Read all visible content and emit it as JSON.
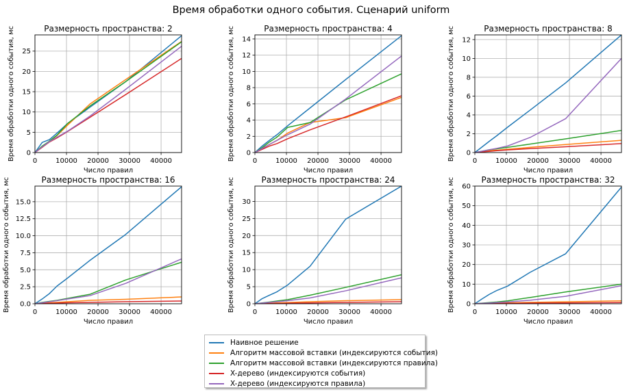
{
  "suptitle": "Время обработки одного события. Сценарий uniform",
  "chart_data": [
    {
      "type": "line",
      "title": "Размерность пространства: 2",
      "xlabel": "Число правил",
      "ylabel": "Время обработки одного события, мс",
      "xlim": [
        0,
        46500
      ],
      "ylim": [
        0,
        29
      ],
      "xticks": [
        0,
        10000,
        20000,
        30000,
        40000
      ],
      "yticks": [
        0,
        5,
        10,
        15,
        20,
        25
      ],
      "grid": true,
      "series": [
        {
          "name": "Наивное решение",
          "color": "#1f77b4",
          "x": [
            0,
            2300,
            4600,
            7000,
            10400,
            17500,
            28800,
            46500
          ],
          "y": [
            0,
            2.5,
            3.2,
            4.8,
            7.2,
            11.2,
            17.5,
            28.8
          ]
        },
        {
          "name": "Алгоритм массовой вставки (индексируются события)",
          "color": "#ff7f0e",
          "x": [
            0,
            2300,
            4600,
            7000,
            10400,
            17500,
            28800,
            46500
          ],
          "y": [
            0,
            1.3,
            2.8,
            4.2,
            6.8,
            12.0,
            18.0,
            27.4
          ]
        },
        {
          "name": "Алгоритм массовой вставки (индексируются правила)",
          "color": "#2ca02c",
          "x": [
            0,
            2300,
            4600,
            7000,
            10400,
            17500,
            28800,
            46500
          ],
          "y": [
            0,
            1.6,
            2.8,
            4.3,
            7.2,
            11.5,
            17.5,
            27.3
          ]
        },
        {
          "name": "X-дерево (индексируются события)",
          "color": "#d62728",
          "x": [
            0,
            2300,
            4600,
            7000,
            10400,
            17500,
            28800,
            46500
          ],
          "y": [
            0,
            1.3,
            2.6,
            3.6,
            5.2,
            8.7,
            14.3,
            23.2
          ]
        },
        {
          "name": "X-дерево (индексируются правила)",
          "color": "#9467bd",
          "x": [
            0,
            2300,
            4600,
            7000,
            10400,
            17500,
            28800,
            46500
          ],
          "y": [
            0,
            1.4,
            2.7,
            3.8,
            5.3,
            9.0,
            15.6,
            26.2
          ]
        }
      ]
    },
    {
      "type": "line",
      "title": "Размерность пространства: 4",
      "xlabel": "Число правил",
      "ylabel": "Время обработки одного события, мс",
      "xlim": [
        0,
        46500
      ],
      "ylim": [
        0,
        14.5
      ],
      "xticks": [
        0,
        10000,
        20000,
        30000,
        40000
      ],
      "yticks": [
        0,
        2,
        4,
        6,
        8,
        10,
        12,
        14
      ],
      "grid": true,
      "series": [
        {
          "name": "Наивное решение",
          "color": "#1f77b4",
          "x": [
            0,
            2300,
            4600,
            7000,
            10400,
            17500,
            28800,
            46500
          ],
          "y": [
            0,
            0.8,
            1.5,
            2.2,
            3.3,
            5.5,
            9.0,
            14.4
          ]
        },
        {
          "name": "Алгоритм массовой вставки (индексируются события)",
          "color": "#ff7f0e",
          "x": [
            0,
            2300,
            4600,
            7000,
            10400,
            17500,
            28800,
            46500
          ],
          "y": [
            0,
            0.5,
            1.0,
            1.5,
            2.4,
            3.7,
            4.3,
            6.8
          ]
        },
        {
          "name": "Алгоритм массовой вставки (индексируются правила)",
          "color": "#2ca02c",
          "x": [
            0,
            2300,
            4600,
            7000,
            10400,
            17500,
            28800,
            46500
          ],
          "y": [
            0,
            0.6,
            1.3,
            1.9,
            3.1,
            3.7,
            6.5,
            9.7
          ]
        },
        {
          "name": "X-дерево (индексируются события)",
          "color": "#d62728",
          "x": [
            0,
            2300,
            4600,
            7000,
            10400,
            17500,
            28800,
            46500
          ],
          "y": [
            0,
            0.4,
            0.8,
            1.1,
            1.7,
            2.8,
            4.4,
            7.0
          ]
        },
        {
          "name": "X-дерево (индексируются правила)",
          "color": "#9467bd",
          "x": [
            0,
            2300,
            4600,
            7000,
            10400,
            17500,
            28800,
            46500
          ],
          "y": [
            0,
            0.5,
            1.0,
            1.5,
            2.2,
            3.5,
            6.6,
            11.9
          ]
        }
      ]
    },
    {
      "type": "line",
      "title": "Размерность пространства: 8",
      "xlabel": "Число правил",
      "ylabel": "Время обработки одного события, мс",
      "xlim": [
        0,
        46500
      ],
      "ylim": [
        0,
        12.5
      ],
      "xticks": [
        0,
        10000,
        20000,
        30000,
        40000
      ],
      "yticks": [
        0,
        2,
        4,
        6,
        8,
        10,
        12
      ],
      "grid": true,
      "series": [
        {
          "name": "Наивное решение",
          "color": "#1f77b4",
          "x": [
            0,
            2300,
            4600,
            7000,
            10400,
            17500,
            28800,
            46500
          ],
          "y": [
            0,
            0.6,
            1.2,
            1.8,
            2.7,
            4.5,
            7.4,
            12.5
          ]
        },
        {
          "name": "Алгоритм массовой вставки (индексируются события)",
          "color": "#ff7f0e",
          "x": [
            0,
            2300,
            4600,
            7000,
            10400,
            17500,
            28800,
            46500
          ],
          "y": [
            0,
            0.1,
            0.2,
            0.25,
            0.35,
            0.55,
            0.85,
            1.3
          ]
        },
        {
          "name": "Алгоритм массовой вставки (индексируются правила)",
          "color": "#2ca02c",
          "x": [
            0,
            2300,
            4600,
            7000,
            10400,
            17500,
            28800,
            46500
          ],
          "y": [
            0,
            0.15,
            0.3,
            0.4,
            0.55,
            0.9,
            1.45,
            2.35
          ]
        },
        {
          "name": "X-дерево (индексируются события)",
          "color": "#d62728",
          "x": [
            0,
            2300,
            4600,
            7000,
            10400,
            17500,
            28800,
            46500
          ],
          "y": [
            0,
            0.07,
            0.13,
            0.2,
            0.28,
            0.42,
            0.62,
            0.95
          ]
        },
        {
          "name": "X-дерево (индексируются правила)",
          "color": "#9467bd",
          "x": [
            0,
            2300,
            4600,
            7000,
            10400,
            17500,
            28800,
            46500
          ],
          "y": [
            0,
            0.15,
            0.3,
            0.45,
            0.7,
            1.6,
            3.6,
            10.0
          ]
        }
      ]
    },
    {
      "type": "line",
      "title": "Размерность пространства: 16",
      "xlabel": "Число правил",
      "ylabel": "Время обработки одного события, мс",
      "xlim": [
        0,
        46500
      ],
      "ylim": [
        0,
        17.3
      ],
      "xticks": [
        0,
        10000,
        20000,
        30000,
        40000
      ],
      "yticks": [
        0,
        2.5,
        5.0,
        7.5,
        10.0,
        12.5,
        15.0
      ],
      "ytick_labels": [
        "0.0",
        "2.5",
        "5.0",
        "7.5",
        "10.0",
        "12.5",
        "15.0"
      ],
      "grid": true,
      "series": [
        {
          "name": "Наивное решение",
          "color": "#1f77b4",
          "x": [
            0,
            2300,
            4600,
            7000,
            10400,
            17500,
            28800,
            46500
          ],
          "y": [
            0,
            0.7,
            1.5,
            2.6,
            3.8,
            6.4,
            10.2,
            17.2
          ]
        },
        {
          "name": "Алгоритм массовой вставки (индексируются события)",
          "color": "#ff7f0e",
          "x": [
            0,
            2300,
            4600,
            7000,
            10400,
            17500,
            28800,
            46500
          ],
          "y": [
            0,
            0.1,
            0.15,
            0.2,
            0.3,
            0.5,
            0.65,
            1.0
          ]
        },
        {
          "name": "Алгоритм массовой вставки (индексируются правила)",
          "color": "#2ca02c",
          "x": [
            0,
            2300,
            4600,
            7000,
            10400,
            17500,
            28800,
            46500
          ],
          "y": [
            0,
            0.2,
            0.35,
            0.5,
            0.8,
            1.4,
            3.5,
            6.1
          ]
        },
        {
          "name": "X-дерево (индексируются события)",
          "color": "#d62728",
          "x": [
            0,
            2300,
            4600,
            7000,
            10400,
            17500,
            28800,
            46500
          ],
          "y": [
            0,
            0.05,
            0.08,
            0.1,
            0.15,
            0.2,
            0.3,
            0.4
          ]
        },
        {
          "name": "X-дерево (индексируются правила)",
          "color": "#9467bd",
          "x": [
            0,
            2300,
            4600,
            7000,
            10400,
            17500,
            28800,
            46500
          ],
          "y": [
            0,
            0.15,
            0.3,
            0.45,
            0.7,
            1.2,
            3.0,
            6.6
          ]
        }
      ]
    },
    {
      "type": "line",
      "title": "Размерность пространства: 24",
      "xlabel": "Число правил",
      "ylabel": "Время обработки одного события, мс",
      "xlim": [
        0,
        46500
      ],
      "ylim": [
        0,
        34.5
      ],
      "xticks": [
        0,
        10000,
        20000,
        30000,
        40000
      ],
      "yticks": [
        0,
        5,
        10,
        15,
        20,
        25,
        30
      ],
      "grid": true,
      "series": [
        {
          "name": "Наивное решение",
          "color": "#1f77b4",
          "x": [
            0,
            2300,
            4600,
            7000,
            10400,
            17500,
            28800,
            46500
          ],
          "y": [
            0,
            1.5,
            2.5,
            3.5,
            5.5,
            11.0,
            24.8,
            34.5
          ]
        },
        {
          "name": "Алгоритм массовой вставки (индексируются события)",
          "color": "#ff7f0e",
          "x": [
            0,
            2300,
            4600,
            7000,
            10400,
            17500,
            28800,
            46500
          ],
          "y": [
            0,
            0.1,
            0.15,
            0.25,
            0.35,
            0.6,
            0.9,
            1.2
          ]
        },
        {
          "name": "Алгоритм массовой вставки (индексируются правила)",
          "color": "#2ca02c",
          "x": [
            0,
            2300,
            4600,
            7000,
            10400,
            17500,
            28800,
            46500
          ],
          "y": [
            0,
            0.25,
            0.5,
            0.8,
            1.2,
            2.5,
            4.8,
            8.5
          ]
        },
        {
          "name": "X-дерево (индексируются события)",
          "color": "#d62728",
          "x": [
            0,
            2300,
            4600,
            7000,
            10400,
            17500,
            28800,
            46500
          ],
          "y": [
            0,
            0.05,
            0.08,
            0.1,
            0.15,
            0.25,
            0.4,
            0.6
          ]
        },
        {
          "name": "X-дерево (индексируются правила)",
          "color": "#9467bd",
          "x": [
            0,
            2300,
            4600,
            7000,
            10400,
            17500,
            28800,
            46500
          ],
          "y": [
            0,
            0.2,
            0.4,
            0.6,
            0.9,
            1.7,
            3.8,
            7.6
          ]
        }
      ]
    },
    {
      "type": "line",
      "title": "Размерность пространства: 32",
      "xlabel": "Число правил",
      "ylabel": "Время обработки одного события, мс",
      "xlim": [
        0,
        46500
      ],
      "ylim": [
        0,
        60
      ],
      "xticks": [
        0,
        10000,
        20000,
        30000,
        40000
      ],
      "yticks": [
        0,
        10,
        20,
        30,
        40,
        50,
        60
      ],
      "grid": true,
      "series": [
        {
          "name": "Наивное решение",
          "color": "#1f77b4",
          "x": [
            0,
            2300,
            4600,
            7000,
            10400,
            17500,
            28800,
            46500
          ],
          "y": [
            0,
            2.5,
            4.8,
            6.8,
            9.0,
            16.0,
            25.5,
            59.5
          ]
        },
        {
          "name": "Алгоритм массовой вставки (индексируются события)",
          "color": "#ff7f0e",
          "x": [
            0,
            2300,
            4600,
            7000,
            10400,
            17500,
            28800,
            46500
          ],
          "y": [
            0,
            0.1,
            0.2,
            0.3,
            0.45,
            0.7,
            1.0,
            1.5
          ]
        },
        {
          "name": "Алгоритм массовой вставки (индексируются правила)",
          "color": "#2ca02c",
          "x": [
            0,
            2300,
            4600,
            7000,
            10400,
            17500,
            28800,
            46500
          ],
          "y": [
            0,
            0.3,
            0.6,
            0.9,
            1.5,
            3.2,
            6.0,
            10.0
          ]
        },
        {
          "name": "X-дерево (индексируются события)",
          "color": "#d62728",
          "x": [
            0,
            2300,
            4600,
            7000,
            10400,
            17500,
            28800,
            46500
          ],
          "y": [
            0,
            0.05,
            0.1,
            0.15,
            0.2,
            0.3,
            0.45,
            0.6
          ]
        },
        {
          "name": "X-дерево (индексируются правила)",
          "color": "#9467bd",
          "x": [
            0,
            2300,
            4600,
            7000,
            10400,
            17500,
            28800,
            46500
          ],
          "y": [
            0,
            0.2,
            0.4,
            0.6,
            0.9,
            1.8,
            3.8,
            9.2
          ]
        }
      ]
    }
  ],
  "legend": {
    "items": [
      {
        "label": "Наивное решение",
        "color": "#1f77b4"
      },
      {
        "label": "Алгоритм массовой вставки (индексируются события)",
        "color": "#ff7f0e"
      },
      {
        "label": "Алгоритм массовой вставки (индексируются правила)",
        "color": "#2ca02c"
      },
      {
        "label": "X-дерево (индексируются события)",
        "color": "#d62728"
      },
      {
        "label": "X-дерево (индексируются правила)",
        "color": "#9467bd"
      }
    ]
  }
}
